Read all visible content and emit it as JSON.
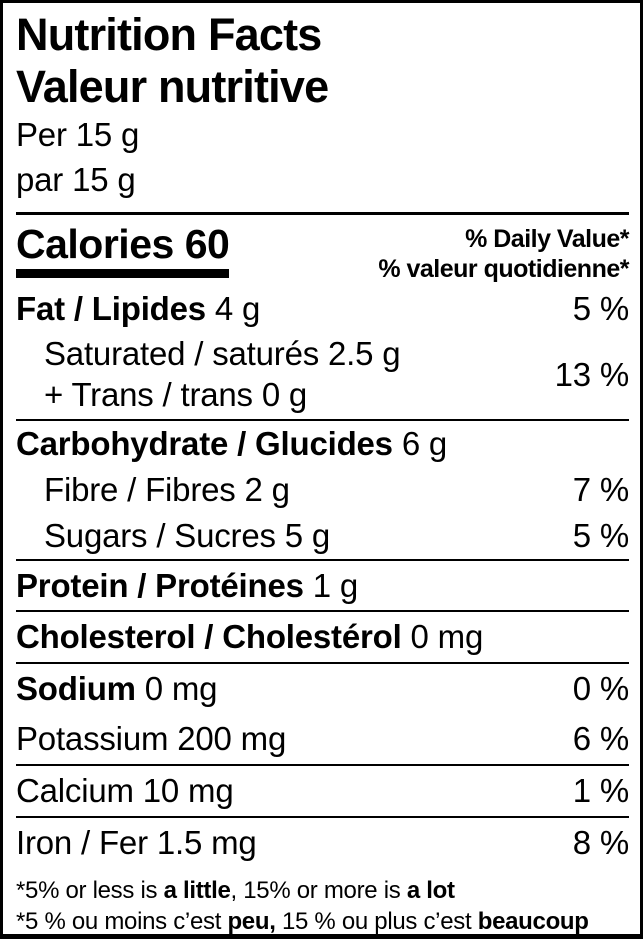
{
  "colors": {
    "text": "#000000",
    "background": "#ffffff"
  },
  "header": {
    "title_en": "Nutrition Facts",
    "title_fr": "Valeur nutritive",
    "serving_en": "Per 15 g",
    "serving_fr": "par 15 g"
  },
  "calories": {
    "word": "Calories",
    "value": "60"
  },
  "dv_header": {
    "en": "% Daily Value*",
    "fr": "% valeur quotidienne*"
  },
  "rows": {
    "fat": {
      "name": "Fat / Lipides",
      "amount": "4 g",
      "dv": "5 %"
    },
    "saturated": {
      "name": "Saturated / saturés",
      "amount": "2.5 g"
    },
    "trans": {
      "name": "+ Trans / trans",
      "amount": "0 g"
    },
    "saturated_trans": {
      "dv": "13 %"
    },
    "carbohydrate": {
      "name": "Carbohydrate / Glucides",
      "amount": "6 g"
    },
    "fibre": {
      "name": "Fibre / Fibres",
      "amount": "2 g",
      "dv": "7 %"
    },
    "sugars": {
      "name": "Sugars / Sucres",
      "amount": "5 g",
      "dv": "5 %"
    },
    "protein": {
      "name": "Protein / Protéines",
      "amount": "1 g"
    },
    "cholesterol": {
      "name": "Cholesterol / Cholestérol",
      "amount": "0 mg"
    },
    "sodium": {
      "name": "Sodium",
      "amount": "0 mg",
      "dv": "0 %"
    },
    "potassium": {
      "name": "Potassium",
      "amount": "200 mg",
      "dv": "6 %"
    },
    "calcium": {
      "name": "Calcium",
      "amount": "10 mg",
      "dv": "1 %"
    },
    "iron": {
      "name": "Iron / Fer",
      "amount": "1.5 mg",
      "dv": "8 %"
    }
  },
  "footnotes": {
    "en": {
      "pre": "*5% or less is ",
      "bold1": "a little",
      "mid": ", 15% or more is ",
      "bold2": "a lot"
    },
    "fr": {
      "pre": "*5 % ou moins c’est ",
      "bold1": "peu,",
      "mid": " 15 % ou plus c’est ",
      "bold2": "beaucoup"
    }
  }
}
